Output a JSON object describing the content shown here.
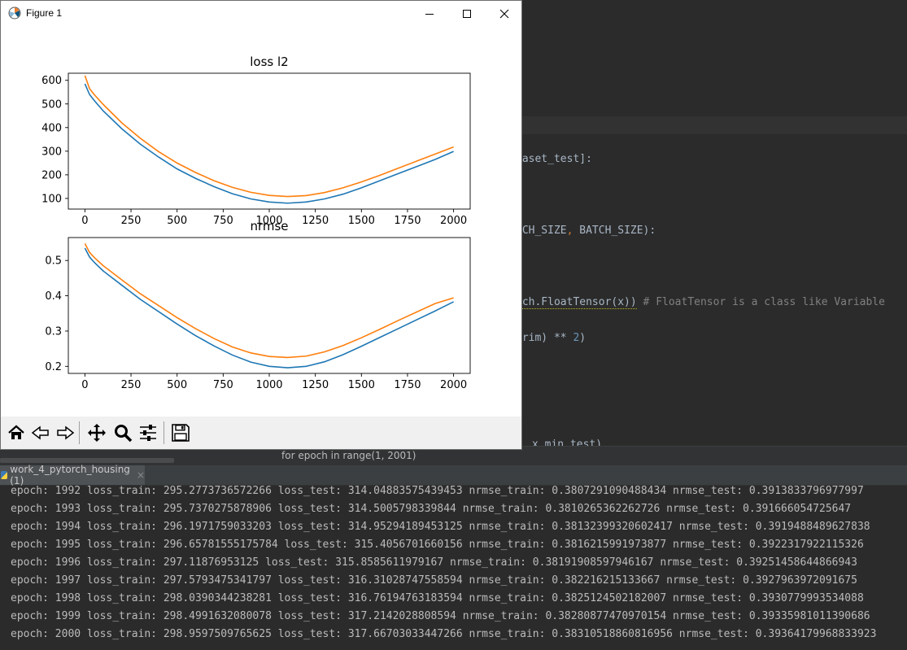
{
  "window": {
    "title": "Figure 1"
  },
  "editor": {
    "lines": [
      {
        "pre": "",
        "a": "taset_test]:",
        "b": "",
        "c": ""
      },
      {
        "pre": "",
        "a": "TCH_SIZE",
        "b": ", ",
        "c": "BATCH_SIZE):"
      },
      {
        "pre": "",
        "a": "rch.FloatTensor(x))",
        "b": " # FloatTensor is a class like Variable",
        "c": ""
      },
      {
        "pre": "",
        "a": "prim) ** ",
        "b": "2",
        "c": ")"
      }
    ],
    "partial_line": "x_min_test)"
  },
  "breadcrumb": "for epoch in range(1, 2001)",
  "run_tab": {
    "label": "work_4_pytorch_housing (1)",
    "close": "×"
  },
  "console_lines": [
    "epoch: 1992 loss_train: 295.2773736572266 loss_test: 314.04883575439453 nrmse_train: 0.3807291090488434 nrmse_test: 0.3913833796977997",
    "epoch: 1993 loss_train: 295.7370275878906 loss_test: 314.5005798339844 nrmse_train: 0.3810265362262726 nrmse_test: 0.391666054725647",
    "epoch: 1994 loss_train: 296.1971759033203 loss_test: 314.95294189453125 nrmse_train: 0.38132399320602417 nrmse_test: 0.3919488489627838",
    "epoch: 1995 loss_train: 296.65781555175784 loss_test: 315.4056701660156 nrmse_train: 0.3816215991973877 nrmse_test: 0.3922317922115326",
    "epoch: 1996 loss_train: 297.11876953125 loss_test: 315.8585611979167 nrmse_train: 0.38191908597946167 nrmse_test: 0.39251458644866943",
    "epoch: 1997 loss_train: 297.5793475341797 loss_test: 316.31028747558594 nrmse_train: 0.382216215133667 nrmse_test: 0.3927963972091675",
    "epoch: 1998 loss_train: 298.0390344238281 loss_test: 316.76194763183594 nrmse_train: 0.3825124502182007 nrmse_test: 0.3930779993534088",
    "epoch: 1999 loss_train: 298.4991632080078 loss_test: 317.2142028808594 nrmse_train: 0.38280877470970154 nrmse_test: 0.39335981011390686",
    "epoch: 2000 loss_train: 298.9597509765625 loss_test: 317.66703033447266 nrmse_train: 0.38310518860816956 nrmse_test: 0.39364179968833923"
  ],
  "toolbar_icons": [
    "home-icon",
    "back-arrow-icon",
    "forward-arrow-icon",
    "pan-icon",
    "zoom-icon",
    "subplots-config-icon",
    "save-icon"
  ],
  "colors": {
    "train": "#1f77b4",
    "test": "#ff7f0e"
  },
  "chart_data": [
    {
      "type": "line",
      "title": "loss l2",
      "xlabel": "",
      "ylabel": "",
      "xlim": [
        -90,
        2090
      ],
      "ylim": [
        55,
        630
      ],
      "xticks": [
        0,
        250,
        500,
        750,
        1000,
        1250,
        1500,
        1750,
        2000
      ],
      "yticks": [
        100,
        200,
        300,
        400,
        500,
        600
      ],
      "grid": false,
      "series": [
        {
          "color": "#1f77b4",
          "x": [
            0,
            25,
            50,
            100,
            200,
            300,
            400,
            500,
            600,
            700,
            800,
            900,
            1000,
            1100,
            1200,
            1300,
            1400,
            1500,
            1600,
            1700,
            1800,
            1900,
            2000
          ],
          "y": [
            585,
            540,
            515,
            470,
            395,
            330,
            275,
            225,
            185,
            150,
            120,
            98,
            85,
            80,
            85,
            98,
            118,
            145,
            175,
            205,
            235,
            265,
            299
          ]
        },
        {
          "color": "#ff7f0e",
          "x": [
            0,
            25,
            50,
            100,
            200,
            300,
            400,
            500,
            600,
            700,
            800,
            900,
            1000,
            1100,
            1200,
            1300,
            1400,
            1500,
            1600,
            1700,
            1800,
            1900,
            2000
          ],
          "y": [
            620,
            565,
            540,
            497,
            420,
            355,
            298,
            250,
            210,
            175,
            147,
            126,
            113,
            108,
            112,
            125,
            145,
            170,
            198,
            228,
            258,
            288,
            318
          ]
        }
      ]
    },
    {
      "type": "line",
      "title": "nrmse",
      "xlabel": "",
      "ylabel": "",
      "xlim": [
        -90,
        2090
      ],
      "ylim": [
        0.18,
        0.565
      ],
      "xticks": [
        0,
        250,
        500,
        750,
        1000,
        1250,
        1500,
        1750,
        2000
      ],
      "yticks": [
        0.2,
        0.3,
        0.4,
        0.5
      ],
      "grid": false,
      "series": [
        {
          "color": "#1f77b4",
          "x": [
            0,
            25,
            50,
            100,
            200,
            300,
            400,
            500,
            600,
            700,
            800,
            900,
            1000,
            1100,
            1200,
            1300,
            1400,
            1500,
            1600,
            1700,
            1800,
            1900,
            2000
          ],
          "y": [
            0.535,
            0.51,
            0.495,
            0.47,
            0.43,
            0.39,
            0.355,
            0.32,
            0.287,
            0.258,
            0.232,
            0.212,
            0.2,
            0.196,
            0.2,
            0.213,
            0.233,
            0.257,
            0.282,
            0.307,
            0.332,
            0.357,
            0.383
          ]
        },
        {
          "color": "#ff7f0e",
          "x": [
            0,
            25,
            50,
            100,
            200,
            300,
            400,
            500,
            600,
            700,
            800,
            900,
            1000,
            1100,
            1200,
            1300,
            1400,
            1500,
            1600,
            1700,
            1800,
            1900,
            2000
          ],
          "y": [
            0.548,
            0.523,
            0.509,
            0.485,
            0.445,
            0.406,
            0.372,
            0.338,
            0.307,
            0.279,
            0.255,
            0.238,
            0.228,
            0.225,
            0.229,
            0.241,
            0.259,
            0.281,
            0.305,
            0.33,
            0.354,
            0.378,
            0.394
          ]
        }
      ]
    }
  ]
}
